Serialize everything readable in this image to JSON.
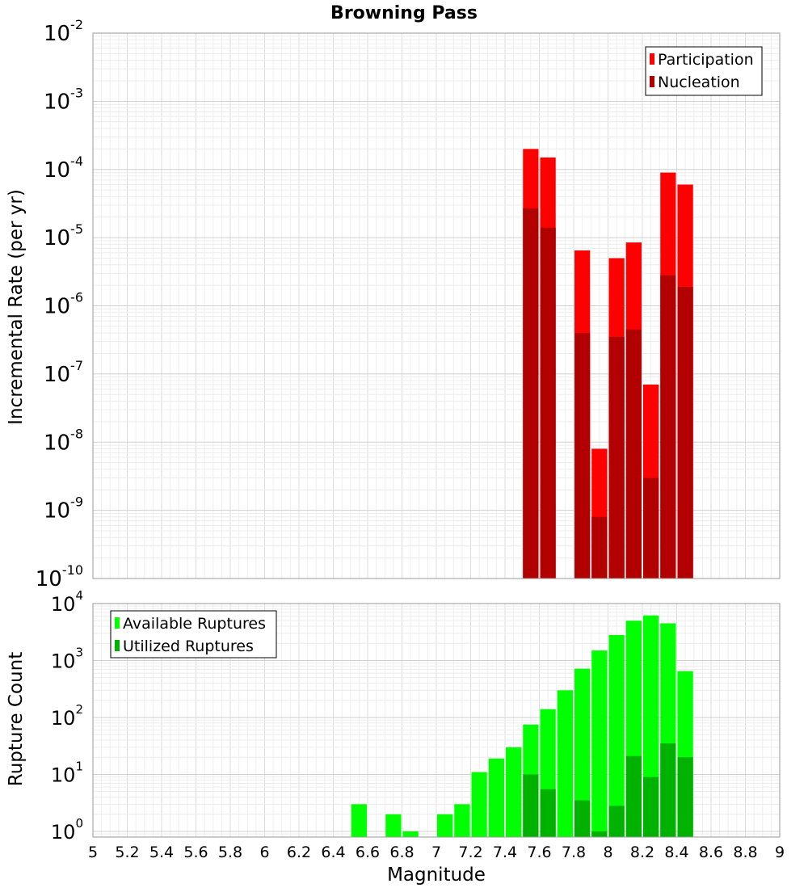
{
  "title": "Browning Pass",
  "xlabel": "Magnitude",
  "x_ticks": [
    "5",
    "5.2",
    "5.4",
    "5.6",
    "5.8",
    "6",
    "6.2",
    "6.4",
    "6.6",
    "6.8",
    "7",
    "7.2",
    "7.4",
    "7.6",
    "7.8",
    "8",
    "8.2",
    "8.4",
    "8.6",
    "8.8",
    "9"
  ],
  "chart_data": [
    {
      "type": "bar",
      "ylabel": "Incremental Rate (per yr)",
      "yscale": "log",
      "xlim": [
        5,
        9
      ],
      "ylim_exp": [
        -10,
        -2
      ],
      "legend_position": "top-right",
      "y_ticks": [
        {
          "base": "10",
          "exp": "-10"
        },
        {
          "base": "10",
          "exp": "-9"
        },
        {
          "base": "10",
          "exp": "-8"
        },
        {
          "base": "10",
          "exp": "-7"
        },
        {
          "base": "10",
          "exp": "-6"
        },
        {
          "base": "10",
          "exp": "-5"
        },
        {
          "base": "10",
          "exp": "-4"
        },
        {
          "base": "10",
          "exp": "-3"
        },
        {
          "base": "10",
          "exp": "-2"
        }
      ],
      "series": [
        {
          "name": "Participation",
          "color": "#ff0000",
          "points": [
            [
              7.55,
              0.0002
            ],
            [
              7.65,
              0.00015
            ],
            [
              7.85,
              6.5e-06
            ],
            [
              7.95,
              8e-09
            ],
            [
              8.05,
              5e-06
            ],
            [
              8.15,
              8.5e-06
            ],
            [
              8.25,
              7e-08
            ],
            [
              8.35,
              9e-05
            ],
            [
              8.45,
              6e-05
            ]
          ]
        },
        {
          "name": "Nucleation",
          "color": "#b20000",
          "points": [
            [
              7.55,
              2.7e-05
            ],
            [
              7.65,
              1.4e-05
            ],
            [
              7.85,
              4e-07
            ],
            [
              7.95,
              8e-10
            ],
            [
              8.05,
              3.5e-07
            ],
            [
              8.15,
              4.5e-07
            ],
            [
              8.25,
              3e-09
            ],
            [
              8.35,
              2.8e-06
            ],
            [
              8.45,
              1.9e-06
            ]
          ]
        }
      ]
    },
    {
      "type": "bar",
      "ylabel": "Rupture Count",
      "yscale": "log",
      "xlim": [
        5,
        9
      ],
      "ylim_exp": [
        -0.1,
        4
      ],
      "legend_position": "top-left",
      "y_ticks": [
        {
          "base": "10",
          "exp": "0"
        },
        {
          "base": "10",
          "exp": "1"
        },
        {
          "base": "10",
          "exp": "2"
        },
        {
          "base": "10",
          "exp": "3"
        },
        {
          "base": "10",
          "exp": "4"
        }
      ],
      "series": [
        {
          "name": "Available Ruptures",
          "color": "#00ff00",
          "points": [
            [
              6.55,
              3
            ],
            [
              6.75,
              2
            ],
            [
              6.85,
              1
            ],
            [
              7.05,
              2
            ],
            [
              7.15,
              3
            ],
            [
              7.25,
              11
            ],
            [
              7.35,
              19
            ],
            [
              7.45,
              30
            ],
            [
              7.55,
              75
            ],
            [
              7.65,
              140
            ],
            [
              7.75,
              300
            ],
            [
              7.85,
              720
            ],
            [
              7.95,
              1500
            ],
            [
              8.05,
              2800
            ],
            [
              8.15,
              5000
            ],
            [
              8.25,
              6200
            ],
            [
              8.35,
              4500
            ],
            [
              8.45,
              650
            ]
          ]
        },
        {
          "name": "Utilized Ruptures",
          "color": "#00b200",
          "points": [
            [
              7.55,
              10
            ],
            [
              7.65,
              5.5
            ],
            [
              7.85,
              3.5
            ],
            [
              7.95,
              1
            ],
            [
              8.05,
              2.8
            ],
            [
              8.15,
              21
            ],
            [
              8.25,
              9
            ],
            [
              8.35,
              35
            ],
            [
              8.45,
              20
            ]
          ]
        }
      ]
    }
  ]
}
